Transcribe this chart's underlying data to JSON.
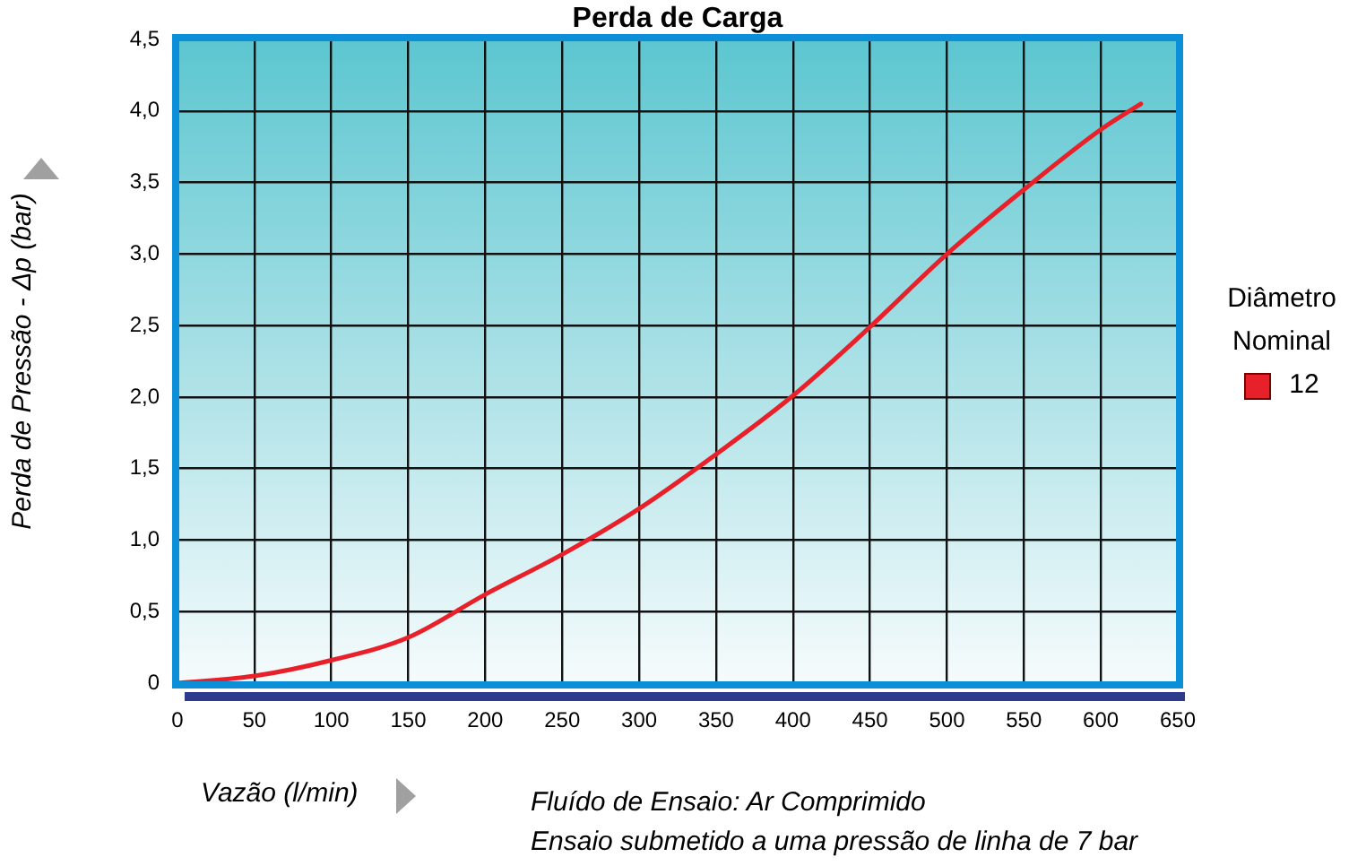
{
  "chart_data": {
    "type": "line",
    "title": "Perda de Carga",
    "xlabel": "Vazão (l/min)",
    "ylabel": "Perda de Pressão - Δp (bar)",
    "legend_title": "Diâmetro Nominal",
    "x": [
      0,
      50,
      100,
      150,
      200,
      250,
      300,
      350,
      400,
      450,
      500,
      550,
      600,
      626
    ],
    "series": [
      {
        "name": "12",
        "color": "#e8202a",
        "values": [
          0,
          0.05,
          0.16,
          0.32,
          0.62,
          0.9,
          1.22,
          1.6,
          2.01,
          2.49,
          3.0,
          3.45,
          3.87,
          4.05
        ]
      }
    ],
    "xlim": [
      0,
      650
    ],
    "xticks": [
      0,
      50,
      100,
      150,
      200,
      250,
      300,
      350,
      400,
      450,
      500,
      550,
      600,
      650
    ],
    "ylim": [
      0,
      4.5
    ],
    "yticks": [
      {
        "value": 0,
        "label": "0"
      },
      {
        "value": 0.5,
        "label": "0,5"
      },
      {
        "value": 1,
        "label": "1,0"
      },
      {
        "value": 1.5,
        "label": "1,5"
      },
      {
        "value": 2,
        "label": "2,0"
      },
      {
        "value": 2.5,
        "label": "2,5"
      },
      {
        "value": 3,
        "label": "3,0"
      },
      {
        "value": 3.5,
        "label": "3,5"
      },
      {
        "value": 4,
        "label": "4,0"
      },
      {
        "value": 4.5,
        "label": "4,5"
      }
    ],
    "grid": true,
    "legend": "right",
    "marker": "none",
    "line_style": "solid",
    "annotations": [
      "Fluído de Ensaio: Ar Comprimido",
      "Ensaio submetido a uma pressão de linha de 7 bar"
    ]
  }
}
